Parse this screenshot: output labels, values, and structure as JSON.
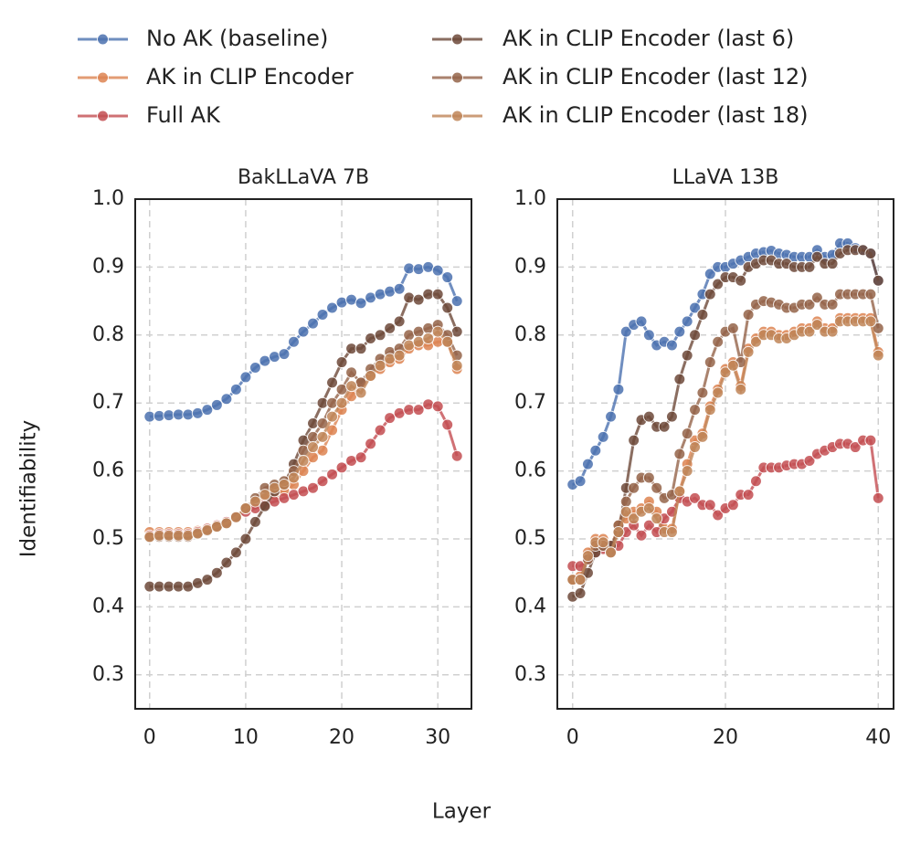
{
  "xlabel": "Layer",
  "ylabel": "Identifiability",
  "chart_data": [
    {
      "type": "line",
      "title": "BakLLaVA 7B",
      "xlim": [
        -1.5,
        33.5
      ],
      "ylim": [
        0.25,
        1.0
      ],
      "xticks": [
        0,
        10,
        20,
        30
      ],
      "yticks": [
        0.3,
        0.4,
        0.5,
        0.6,
        0.7,
        0.8,
        0.9,
        {
          "value": 1.0,
          "label": "1.0"
        }
      ],
      "grid": true,
      "x": [
        0,
        1,
        2,
        3,
        4,
        5,
        6,
        7,
        8,
        9,
        10,
        11,
        12,
        13,
        14,
        15,
        16,
        17,
        18,
        19,
        20,
        21,
        22,
        23,
        24,
        25,
        26,
        27,
        28,
        29,
        30,
        31,
        32
      ],
      "series": [
        {
          "name": "No AK (baseline)",
          "color": "#4c72b0",
          "values": [
            0.68,
            0.681,
            0.682,
            0.683,
            0.683,
            0.685,
            0.69,
            0.697,
            0.706,
            0.72,
            0.738,
            0.752,
            0.762,
            0.768,
            0.772,
            0.79,
            0.805,
            0.817,
            0.83,
            0.84,
            0.848,
            0.852,
            0.847,
            0.855,
            0.86,
            0.864,
            0.868,
            0.898,
            0.897,
            0.9,
            0.895,
            0.885,
            0.85
          ]
        },
        {
          "name": "AK in CLIP Encoder",
          "color": "#dd8452",
          "values": [
            0.51,
            0.51,
            0.51,
            0.51,
            0.51,
            0.512,
            0.516,
            0.52,
            0.525,
            0.532,
            0.545,
            0.552,
            0.56,
            0.565,
            0.57,
            0.58,
            0.6,
            0.62,
            0.63,
            0.66,
            0.69,
            0.71,
            0.73,
            0.74,
            0.75,
            0.76,
            0.765,
            0.78,
            0.785,
            0.785,
            0.79,
            0.79,
            0.75
          ]
        },
        {
          "name": "Full AK",
          "color": "#c44e52",
          "values": [
            0.505,
            0.507,
            0.507,
            0.507,
            0.507,
            0.51,
            0.515,
            0.52,
            0.525,
            0.532,
            0.54,
            0.545,
            0.55,
            0.555,
            0.56,
            0.565,
            0.57,
            0.575,
            0.585,
            0.595,
            0.605,
            0.615,
            0.62,
            0.64,
            0.66,
            0.678,
            0.685,
            0.69,
            0.69,
            0.698,
            0.695,
            0.668,
            0.622
          ]
        },
        {
          "name": "AK in CLIP Encoder (last 6)",
          "color": "#6e4a3a",
          "values": [
            0.43,
            0.43,
            0.43,
            0.43,
            0.43,
            0.435,
            0.44,
            0.45,
            0.465,
            0.48,
            0.5,
            0.525,
            0.548,
            0.57,
            0.58,
            0.61,
            0.645,
            0.67,
            0.7,
            0.73,
            0.76,
            0.78,
            0.78,
            0.795,
            0.8,
            0.81,
            0.82,
            0.855,
            0.852,
            0.86,
            0.86,
            0.84,
            0.805
          ]
        },
        {
          "name": "AK in CLIP Encoder (last 12)",
          "color": "#95644a",
          "values": [
            0.502,
            0.503,
            0.503,
            0.503,
            0.503,
            0.507,
            0.512,
            0.518,
            0.523,
            0.532,
            0.545,
            0.56,
            0.575,
            0.58,
            0.585,
            0.6,
            0.63,
            0.65,
            0.67,
            0.7,
            0.72,
            0.745,
            0.73,
            0.75,
            0.765,
            0.775,
            0.78,
            0.8,
            0.805,
            0.81,
            0.815,
            0.8,
            0.77
          ]
        },
        {
          "name": "AK in CLIP Encoder (last 18)",
          "color": "#c08558",
          "values": [
            0.503,
            0.505,
            0.505,
            0.505,
            0.505,
            0.508,
            0.513,
            0.518,
            0.523,
            0.532,
            0.545,
            0.555,
            0.565,
            0.575,
            0.58,
            0.59,
            0.615,
            0.635,
            0.65,
            0.68,
            0.7,
            0.725,
            0.715,
            0.74,
            0.755,
            0.765,
            0.77,
            0.785,
            0.79,
            0.795,
            0.805,
            0.79,
            0.755
          ]
        }
      ]
    },
    {
      "type": "line",
      "title": "LLaVA 13B",
      "xlim": [
        -2,
        42
      ],
      "ylim": [
        0.25,
        1.0
      ],
      "xticks": [
        0,
        20,
        40
      ],
      "yticks": [
        0.3,
        0.4,
        0.5,
        0.6,
        0.7,
        0.8,
        0.9,
        {
          "value": 1.0,
          "label": "1.0"
        }
      ],
      "grid": true,
      "x": [
        0,
        1,
        2,
        3,
        4,
        5,
        6,
        7,
        8,
        9,
        10,
        11,
        12,
        13,
        14,
        15,
        16,
        17,
        18,
        19,
        20,
        21,
        22,
        23,
        24,
        25,
        26,
        27,
        28,
        29,
        30,
        31,
        32,
        33,
        34,
        35,
        36,
        37,
        38,
        39,
        40
      ],
      "series": [
        {
          "name": "No AK (baseline)",
          "color": "#4c72b0",
          "values": [
            0.58,
            0.585,
            0.61,
            0.63,
            0.65,
            0.68,
            0.72,
            0.805,
            0.815,
            0.82,
            0.8,
            0.785,
            0.79,
            0.785,
            0.805,
            0.82,
            0.84,
            0.86,
            0.89,
            0.9,
            0.9,
            0.905,
            0.91,
            0.915,
            0.92,
            0.922,
            0.924,
            0.92,
            0.918,
            0.915,
            0.915,
            0.915,
            0.925,
            0.915,
            0.918,
            0.935,
            0.935,
            0.928,
            0.925,
            0.92,
            0.88
          ]
        },
        {
          "name": "AK in CLIP Encoder",
          "color": "#dd8452",
          "values": [
            0.44,
            0.445,
            0.48,
            0.5,
            0.5,
            0.485,
            0.52,
            0.53,
            0.54,
            0.545,
            0.555,
            0.54,
            0.515,
            0.515,
            0.57,
            0.61,
            0.645,
            0.655,
            0.695,
            0.72,
            0.75,
            0.76,
            0.725,
            0.78,
            0.795,
            0.805,
            0.805,
            0.8,
            0.8,
            0.805,
            0.81,
            0.81,
            0.82,
            0.81,
            0.81,
            0.825,
            0.825,
            0.825,
            0.825,
            0.825,
            0.775
          ]
        },
        {
          "name": "Full AK",
          "color": "#c44e52",
          "values": [
            0.46,
            0.46,
            0.47,
            0.48,
            0.485,
            0.49,
            0.49,
            0.51,
            0.52,
            0.505,
            0.52,
            0.51,
            0.53,
            0.54,
            0.56,
            0.555,
            0.56,
            0.55,
            0.55,
            0.535,
            0.545,
            0.55,
            0.565,
            0.565,
            0.585,
            0.605,
            0.605,
            0.605,
            0.608,
            0.61,
            0.61,
            0.615,
            0.625,
            0.63,
            0.635,
            0.64,
            0.64,
            0.635,
            0.645,
            0.645,
            0.56
          ]
        },
        {
          "name": "AK in CLIP Encoder (last 6)",
          "color": "#6e4a3a",
          "values": [
            0.415,
            0.42,
            0.45,
            0.48,
            0.49,
            0.49,
            0.51,
            0.575,
            0.645,
            0.675,
            0.68,
            0.665,
            0.665,
            0.68,
            0.735,
            0.77,
            0.8,
            0.83,
            0.86,
            0.875,
            0.885,
            0.885,
            0.88,
            0.9,
            0.905,
            0.91,
            0.91,
            0.905,
            0.905,
            0.9,
            0.9,
            0.9,
            0.915,
            0.905,
            0.905,
            0.92,
            0.925,
            0.925,
            0.925,
            0.92,
            0.88
          ]
        },
        {
          "name": "AK in CLIP Encoder (last 12)",
          "color": "#95644a",
          "values": [
            0.44,
            0.44,
            0.47,
            0.49,
            0.49,
            0.48,
            0.52,
            0.555,
            0.575,
            0.59,
            0.59,
            0.575,
            0.56,
            0.565,
            0.625,
            0.655,
            0.69,
            0.715,
            0.76,
            0.79,
            0.805,
            0.81,
            0.76,
            0.83,
            0.845,
            0.85,
            0.848,
            0.845,
            0.84,
            0.84,
            0.845,
            0.845,
            0.855,
            0.845,
            0.845,
            0.86,
            0.86,
            0.86,
            0.86,
            0.86,
            0.81
          ]
        },
        {
          "name": "AK in CLIP Encoder (last 18)",
          "color": "#c08558",
          "values": [
            0.44,
            0.44,
            0.475,
            0.495,
            0.495,
            0.48,
            0.51,
            0.54,
            0.53,
            0.54,
            0.545,
            0.53,
            0.51,
            0.51,
            0.57,
            0.6,
            0.635,
            0.65,
            0.69,
            0.715,
            0.745,
            0.755,
            0.72,
            0.775,
            0.79,
            0.8,
            0.8,
            0.795,
            0.795,
            0.8,
            0.805,
            0.805,
            0.815,
            0.805,
            0.805,
            0.82,
            0.82,
            0.82,
            0.82,
            0.82,
            0.77
          ]
        }
      ]
    }
  ]
}
